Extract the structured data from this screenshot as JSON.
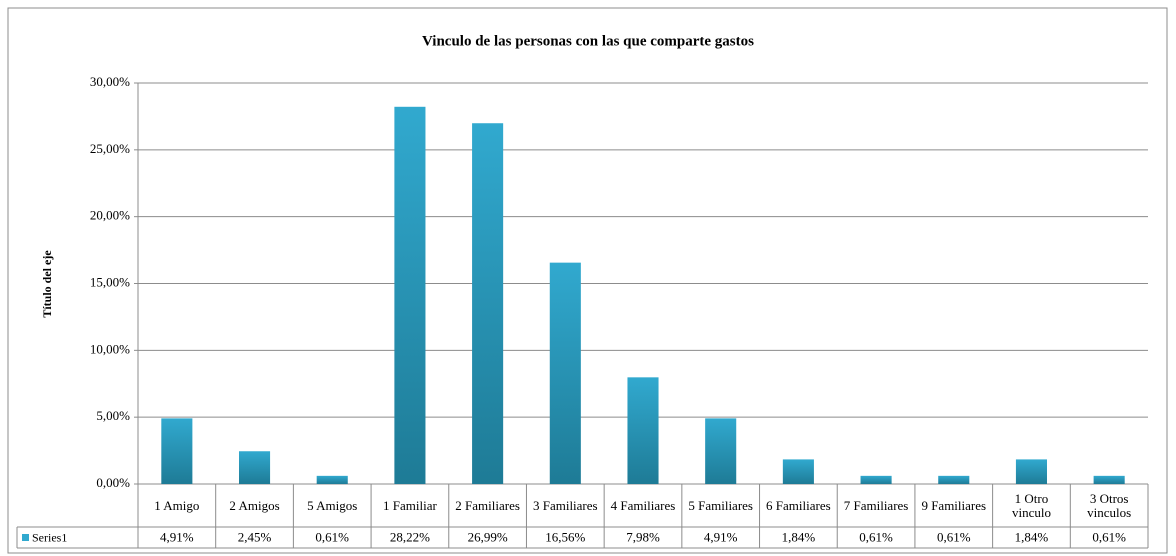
{
  "chart_data": {
    "type": "bar",
    "title": "Vinculo de las personas con las que comparte gastos",
    "y_label": "Título del eje",
    "categories": [
      "1 Amigo",
      "2 Amigos",
      "5 Amigos",
      "1 Familiar",
      "2 Familiares",
      "3 Familiares",
      "4 Familiares",
      "5 Familiares",
      "6 Familiares",
      "7 Familiares",
      "9 Familiares",
      "1 Otro vinculo",
      "3 Otros vinculos"
    ],
    "series": [
      {
        "name": "Series1",
        "color": "#31a9cf",
        "values": [
          4.91,
          2.45,
          0.61,
          28.22,
          26.99,
          16.56,
          7.98,
          4.91,
          1.84,
          0.61,
          0.61,
          1.84,
          0.61
        ],
        "value_labels": [
          "4,91%",
          "2,45%",
          "0,61%",
          "28,22%",
          "26,99%",
          "16,56%",
          "7,98%",
          "4,91%",
          "1,84%",
          "0,61%",
          "0,61%",
          "1,84%",
          "0,61%"
        ]
      }
    ],
    "ylim": [
      0,
      30
    ],
    "yticks": [
      {
        "value": 0,
        "label": "0,00%"
      },
      {
        "value": 5,
        "label": "5,00%"
      },
      {
        "value": 10,
        "label": "10,00%"
      },
      {
        "value": 15,
        "label": "15,00%"
      },
      {
        "value": 20,
        "label": "20,00%"
      },
      {
        "value": 25,
        "label": "25,00%"
      },
      {
        "value": 30,
        "label": "30,00%"
      }
    ],
    "grid": true
  }
}
